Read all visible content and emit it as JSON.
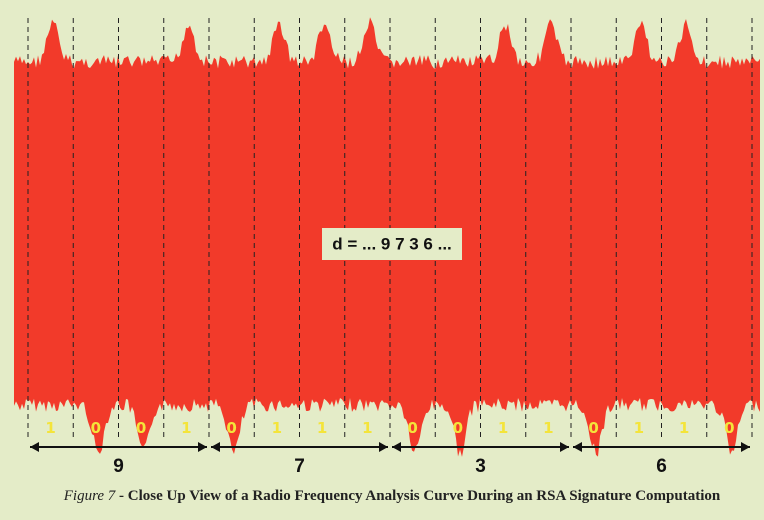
{
  "annotation": "d = ... 9 7 3 6 ...",
  "bits": [
    "1",
    "0",
    "0",
    "1",
    "0",
    "1",
    "1",
    "1",
    "0",
    "0",
    "1",
    "1",
    "0",
    "1",
    "1",
    "0"
  ],
  "digits": [
    "9",
    "7",
    "3",
    "6"
  ],
  "caption": {
    "label": "Figure 7",
    "text": " - Close Up View of a Radio Frequency Analysis Curve During an RSA Signature Computation"
  }
}
